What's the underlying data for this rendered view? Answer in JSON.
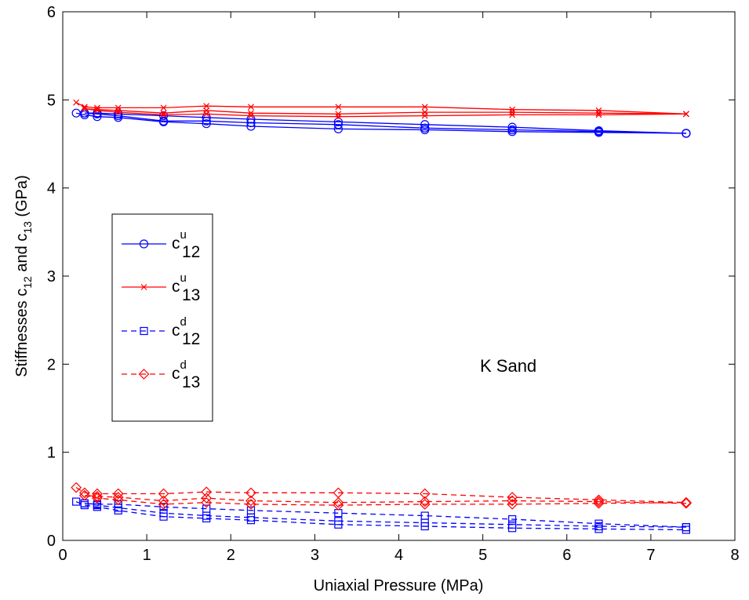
{
  "chart_data": {
    "type": "line",
    "xlabel": "Uniaxial Pressure (MPa)",
    "ylabel": "Stiffnesses c₁₂ and c₁₃ (GPa)",
    "ylabel_parts": {
      "a": "Stiffnesses c",
      "sub1": "12",
      "b": " and c",
      "sub2": "13",
      "c": " (GPa)"
    },
    "xlim": [
      0,
      8
    ],
    "ylim": [
      0,
      6
    ],
    "xticks": [
      "0",
      "1",
      "2",
      "3",
      "4",
      "5",
      "6",
      "7",
      "8"
    ],
    "yticks": [
      "0",
      "1",
      "2",
      "3",
      "4",
      "5",
      "6"
    ],
    "annotation": "K Sand",
    "legend_position": "left-center",
    "grid": false,
    "series": [
      {
        "name": "c12u",
        "label": {
          "base": "c",
          "sup": "u",
          "sub": "12"
        },
        "color": "#0000ff",
        "dash": "solid",
        "marker": "circle",
        "segments": [
          {
            "x": [
              0.16,
              0.26,
              0.41,
              0.66,
              1.2,
              1.71,
              2.24,
              3.28,
              4.31,
              5.35,
              6.38,
              7.42
            ],
            "y": [
              4.85,
              4.83,
              4.81,
              4.8,
              4.75,
              4.73,
              4.7,
              4.67,
              4.66,
              4.64,
              4.63,
              4.62
            ]
          },
          {
            "x": [
              7.42,
              6.38,
              5.35,
              4.31,
              3.28,
              2.24,
              1.71,
              1.2,
              0.66,
              0.41,
              0.26
            ],
            "y": [
              4.62,
              4.64,
              4.66,
              4.68,
              4.72,
              4.74,
              4.76,
              4.76,
              4.82,
              4.84,
              4.85
            ]
          },
          {
            "x": [
              0.26,
              0.41,
              0.66,
              1.2,
              1.71,
              2.24,
              3.28,
              4.31,
              5.35,
              6.38,
              7.42
            ],
            "y": [
              4.85,
              4.85,
              4.84,
              4.82,
              4.8,
              4.78,
              4.75,
              4.72,
              4.69,
              4.65,
              4.62
            ]
          }
        ]
      },
      {
        "name": "c13u",
        "label": {
          "base": "c",
          "sup": "u",
          "sub": "13"
        },
        "color": "#ff0000",
        "dash": "solid",
        "marker": "x",
        "segments": [
          {
            "x": [
              0.16,
              0.26,
              0.41,
              0.66,
              1.2,
              1.71,
              2.24,
              3.28,
              4.31,
              5.35,
              6.38,
              7.42
            ],
            "y": [
              4.97,
              4.92,
              4.91,
              4.91,
              4.91,
              4.93,
              4.92,
              4.92,
              4.92,
              4.89,
              4.88,
              4.84
            ]
          },
          {
            "x": [
              7.42,
              6.38,
              5.35,
              4.31,
              3.28,
              2.24,
              1.71,
              1.2,
              0.66,
              0.41,
              0.26
            ],
            "y": [
              4.84,
              4.85,
              4.86,
              4.86,
              4.84,
              4.85,
              4.88,
              4.85,
              4.88,
              4.89,
              4.9
            ]
          },
          {
            "x": [
              0.26,
              0.41,
              0.66,
              1.2,
              1.71,
              2.24,
              3.28,
              4.31,
              5.35,
              6.38,
              7.42
            ],
            "y": [
              4.9,
              4.88,
              4.86,
              4.83,
              4.84,
              4.82,
              4.81,
              4.82,
              4.83,
              4.83,
              4.84
            ]
          }
        ]
      },
      {
        "name": "c12d",
        "label": {
          "base": "c",
          "sup": "d",
          "sub": "12"
        },
        "color": "#0000ff",
        "dash": "dashed",
        "marker": "square",
        "segments": [
          {
            "x": [
              0.16,
              0.26,
              0.41,
              0.66,
              1.2,
              1.71,
              2.24,
              3.28,
              4.31,
              5.35,
              6.38,
              7.42
            ],
            "y": [
              0.44,
              0.4,
              0.38,
              0.34,
              0.27,
              0.25,
              0.23,
              0.18,
              0.16,
              0.14,
              0.13,
              0.12
            ]
          },
          {
            "x": [
              7.42,
              6.38,
              5.35,
              4.31,
              3.28,
              2.24,
              1.71,
              1.2,
              0.66,
              0.41,
              0.26
            ],
            "y": [
              0.15,
              0.19,
              0.24,
              0.28,
              0.31,
              0.34,
              0.36,
              0.38,
              0.41,
              0.41,
              0.42
            ]
          },
          {
            "x": [
              0.26,
              0.41,
              0.66,
              1.2,
              1.71,
              2.24,
              3.28,
              4.31,
              5.35,
              6.38,
              7.42
            ],
            "y": [
              0.42,
              0.4,
              0.37,
              0.31,
              0.28,
              0.26,
              0.22,
              0.2,
              0.18,
              0.16,
              0.15
            ]
          }
        ]
      },
      {
        "name": "c13d",
        "label": {
          "base": "c",
          "sup": "d",
          "sub": "13"
        },
        "color": "#ff0000",
        "dash": "dashed",
        "marker": "diamond",
        "segments": [
          {
            "x": [
              0.16,
              0.26,
              0.41,
              0.66,
              1.2,
              1.71,
              2.24,
              3.28,
              4.31,
              5.35,
              6.38,
              7.42
            ],
            "y": [
              0.6,
              0.54,
              0.53,
              0.53,
              0.53,
              0.55,
              0.54,
              0.54,
              0.53,
              0.49,
              0.46,
              0.43
            ]
          },
          {
            "x": [
              7.42,
              6.38,
              5.35,
              4.31,
              3.28,
              2.24,
              1.71,
              1.2,
              0.66,
              0.41,
              0.26
            ],
            "y": [
              0.42,
              0.44,
              0.45,
              0.44,
              0.43,
              0.45,
              0.48,
              0.45,
              0.49,
              0.5,
              0.51
            ]
          },
          {
            "x": [
              0.26,
              0.41,
              0.66,
              1.2,
              1.71,
              2.24,
              3.28,
              4.31,
              5.35,
              6.38,
              7.42
            ],
            "y": [
              0.51,
              0.48,
              0.46,
              0.41,
              0.43,
              0.41,
              0.4,
              0.41,
              0.41,
              0.42,
              0.43
            ]
          }
        ]
      }
    ]
  }
}
